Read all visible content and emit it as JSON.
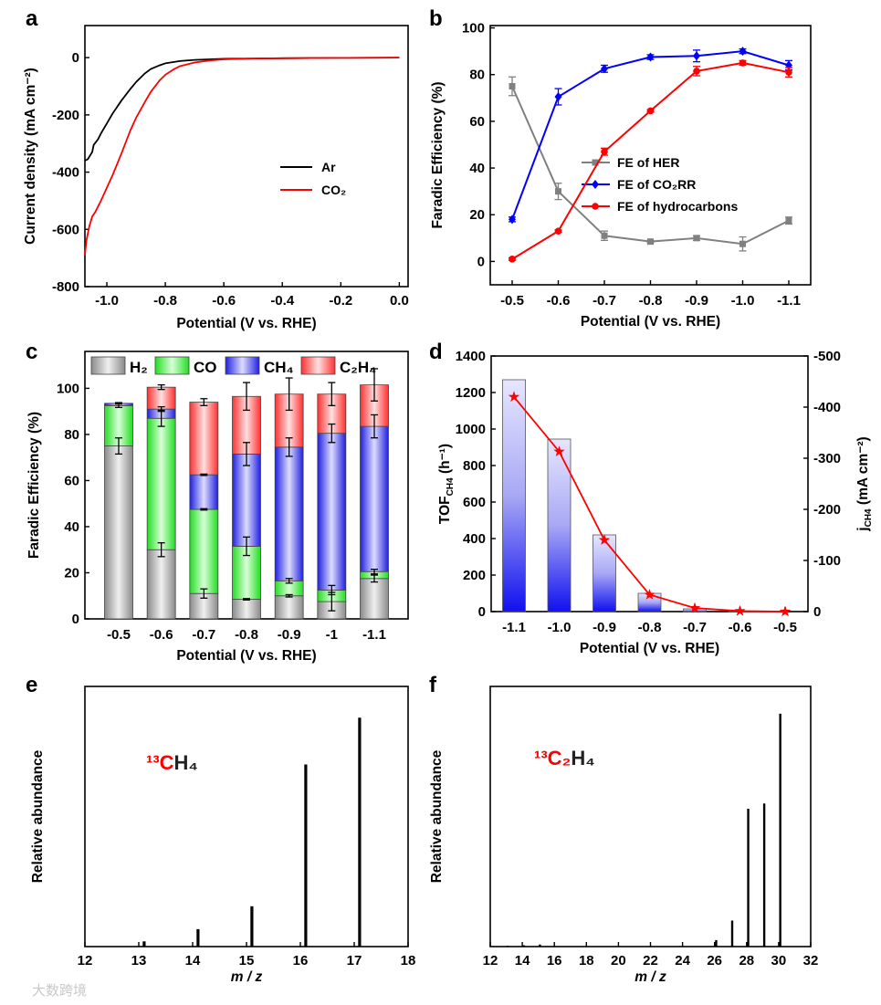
{
  "watermark": "大数跨境",
  "chart_data": [
    {
      "panel": "a",
      "type": "line",
      "xlabel": "Potential (V vs. RHE)",
      "ylabel": "Current density (mA cm⁻²)",
      "xlim": [
        -1.075,
        0.03
      ],
      "ylim": [
        -800,
        112
      ],
      "xticks": [
        "-1.0",
        "-0.8",
        "-0.6",
        "-0.4",
        "-0.2",
        "0.0"
      ],
      "xtick_values": [
        -1.0,
        -0.8,
        -0.6,
        -0.4,
        -0.2,
        0.0
      ],
      "yticks": [
        "0",
        "-200",
        "-400",
        "-600",
        "-800"
      ],
      "ytick_values": [
        0,
        -200,
        -400,
        -600,
        -800
      ],
      "legend_position": "center-right",
      "series": [
        {
          "name": "Ar",
          "color": "#000000",
          "x": [
            -1.075,
            -1.065,
            -1.05,
            -1.045,
            -1.03,
            -1.02,
            -1.0,
            -0.98,
            -0.95,
            -0.92,
            -0.9,
            -0.87,
            -0.85,
            -0.82,
            -0.8,
            -0.75,
            -0.7,
            -0.6,
            -0.5,
            -0.4,
            -0.2,
            0.0
          ],
          "y": [
            -360,
            -355,
            -330,
            -305,
            -285,
            -265,
            -230,
            -195,
            -150,
            -110,
            -85,
            -55,
            -40,
            -27,
            -20,
            -12,
            -8,
            -4,
            -3,
            -2,
            -1,
            0
          ]
        },
        {
          "name": "CO₂",
          "color": "#ff0000",
          "x": [
            -1.075,
            -1.07,
            -1.06,
            -1.05,
            -1.04,
            -1.02,
            -1.0,
            -0.98,
            -0.95,
            -0.92,
            -0.9,
            -0.87,
            -0.85,
            -0.82,
            -0.8,
            -0.77,
            -0.75,
            -0.7,
            -0.65,
            -0.6,
            -0.5,
            -0.4,
            -0.2,
            0.0
          ],
          "y": [
            -690,
            -640,
            -590,
            -555,
            -540,
            -500,
            -455,
            -410,
            -335,
            -255,
            -210,
            -155,
            -120,
            -80,
            -60,
            -40,
            -30,
            -17,
            -10,
            -6,
            -3,
            -2,
            -1,
            0
          ]
        }
      ]
    },
    {
      "panel": "b",
      "type": "line",
      "xlabel": "Potential (V vs. RHE)",
      "ylabel": "Faradic Efficiency (%)",
      "categories": [
        "-0.5",
        "-0.6",
        "-0.7",
        "-0.8",
        "-0.9",
        "-1.0",
        "-1.1"
      ],
      "ylim": [
        -10,
        101
      ],
      "yticks": [
        "0",
        "20",
        "40",
        "60",
        "80",
        "100"
      ],
      "ytick_values": [
        0,
        20,
        40,
        60,
        80,
        100
      ],
      "legend_position": "center-right",
      "series": [
        {
          "name": "FE of HER",
          "color": "#808080",
          "marker": "square",
          "values": [
            75,
            30,
            11,
            8.5,
            10,
            7.5,
            17.5
          ],
          "errors": [
            4,
            3.5,
            2,
            0.5,
            1,
            3,
            1.5
          ]
        },
        {
          "name": "FE of CO₂RR",
          "color": "#0000ff",
          "marker": "diamond",
          "values": [
            18,
            70.5,
            82.5,
            87.5,
            88,
            90,
            84
          ],
          "errors": [
            1,
            3.5,
            1.5,
            1,
            2.5,
            1,
            2
          ]
        },
        {
          "name": "FE of hydrocarbons",
          "color": "#ff0000",
          "marker": "circle",
          "values": [
            1,
            13,
            47,
            64.5,
            81.5,
            85,
            81
          ],
          "errors": [
            0.5,
            0.5,
            1.5,
            0.5,
            2,
            1,
            2
          ]
        }
      ]
    },
    {
      "panel": "c",
      "type": "bar",
      "stacked": true,
      "xlabel": "Potential (V vs. RHE)",
      "ylabel": "Faradic Efficiency (%)",
      "categories": [
        "-0.5",
        "-0.6",
        "-0.7",
        "-0.8",
        "-0.9",
        "-1",
        "-1.1"
      ],
      "ylim": [
        0,
        116
      ],
      "yticks": [
        "0",
        "20",
        "40",
        "60",
        "80",
        "100"
      ],
      "ytick_values": [
        0,
        20,
        40,
        60,
        80,
        100
      ],
      "legend_position": "top",
      "series": [
        {
          "name": "H₂",
          "color": "#a0a0a0",
          "values": [
            75,
            30,
            11,
            8.5,
            10,
            7.5,
            17.5
          ],
          "errors": [
            3.5,
            3,
            2,
            0.3,
            0.5,
            4,
            1.5
          ]
        },
        {
          "name": "CO",
          "color": "#33ee33",
          "values": [
            17.5,
            57,
            36.5,
            23,
            6.5,
            5,
            3
          ],
          "errors": [
            0.8,
            3.5,
            0.3,
            4,
            1,
            2,
            1
          ]
        },
        {
          "name": "CH₄",
          "color": "#2020ee",
          "values": [
            1,
            4,
            15,
            40,
            58,
            68,
            63
          ],
          "errors": [
            0.3,
            1,
            0.3,
            5,
            4,
            4,
            5
          ]
        },
        {
          "name": "C₂H₄",
          "color": "#ff4040",
          "values": [
            0,
            9.5,
            31.5,
            25,
            23,
            17,
            18
          ],
          "errors": [
            0,
            1,
            1.5,
            6,
            7,
            5,
            7
          ]
        }
      ]
    },
    {
      "panel": "d",
      "type": "bar+line",
      "xlabel": "Potential (V vs. RHE)",
      "ylabel": {
        "main": "TOF",
        "sub": "CH4",
        "rest": " (h⁻¹)"
      },
      "ylabel_right": {
        "main": "j",
        "sub": "CH4",
        "rest": " (mA cm⁻²)"
      },
      "categories": [
        "-1.1",
        "-1.0",
        "-0.9",
        "-0.8",
        "-0.7",
        "-0.6",
        "-0.5"
      ],
      "ylim": [
        0,
        1400
      ],
      "ylim_right": [
        0,
        -500
      ],
      "yticks": [
        "0",
        "200",
        "400",
        "600",
        "800",
        "1000",
        "1200",
        "1400"
      ],
      "ytick_values": [
        0,
        200,
        400,
        600,
        800,
        1000,
        1200,
        1400
      ],
      "yticks_right": [
        "0",
        "-100",
        "-200",
        "-300",
        "-400",
        "-500"
      ],
      "ytick_values_right": [
        0,
        -100,
        -200,
        -300,
        -400,
        -500
      ],
      "series": [
        {
          "name": "TOF CH4",
          "type": "bar",
          "axis": "left",
          "color": "#0000ff",
          "values": [
            1270,
            945,
            420,
            100,
            15,
            2,
            0
          ]
        },
        {
          "name": "j CH4",
          "type": "line",
          "axis": "right",
          "color": "#ff0000",
          "marker": "star",
          "values": [
            -420,
            -313,
            -140,
            -33,
            -7,
            -1,
            0
          ]
        }
      ]
    },
    {
      "panel": "e",
      "type": "bar",
      "xlabel": "m / z",
      "ylabel": "Relative abundance",
      "xlim": [
        12,
        18
      ],
      "ylim": [
        0,
        1
      ],
      "xticks": [
        "12",
        "13",
        "14",
        "15",
        "16",
        "17",
        "18"
      ],
      "xtick_values": [
        12,
        13,
        14,
        15,
        16,
        17,
        18
      ],
      "annotation": {
        "colored": "¹³C",
        "rest": "H₄"
      },
      "x": [
        13.1,
        14.1,
        15.1,
        16.1,
        17.1
      ],
      "values": [
        0.02,
        0.067,
        0.155,
        0.7,
        0.88
      ]
    },
    {
      "panel": "f",
      "type": "bar",
      "xlabel": "m / z",
      "ylabel": "Relative abundance",
      "xlim": [
        12,
        32
      ],
      "ylim": [
        0,
        1
      ],
      "xticks": [
        "12",
        "14",
        "16",
        "18",
        "20",
        "22",
        "24",
        "26",
        "28",
        "30",
        "32"
      ],
      "xtick_values": [
        12,
        14,
        16,
        18,
        20,
        22,
        24,
        26,
        28,
        30,
        32
      ],
      "annotation": {
        "colored": "¹³C₂",
        "rest": "H₄"
      },
      "x": [
        13.1,
        14.1,
        15.1,
        26.1,
        27.1,
        28.1,
        29.1,
        30.1
      ],
      "values": [
        0.003,
        0.005,
        0.008,
        0.025,
        0.1,
        0.53,
        0.55,
        0.895
      ]
    }
  ]
}
